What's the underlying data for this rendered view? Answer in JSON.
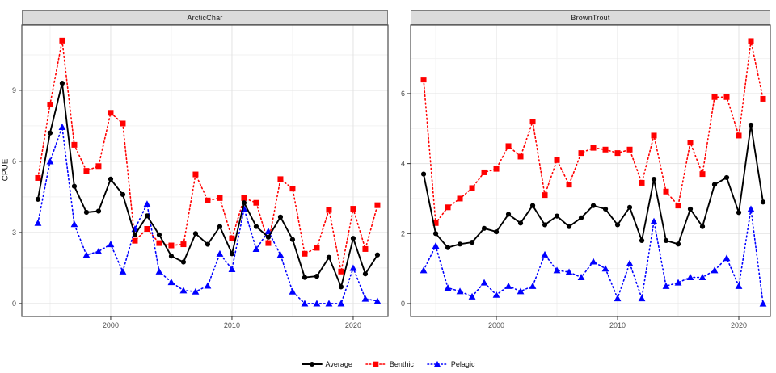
{
  "figure": {
    "y_axis_label": "CPUE",
    "background": "#FFFFFF"
  },
  "colors": {
    "average": "#000000",
    "benthic": "#FF0000",
    "pelagic": "#0000FF",
    "strip_bg": "#DBDBDB",
    "grid_major": "#E3E3E3",
    "grid_minor": "#F2F2F2",
    "axis_text": "#4D4D4D",
    "panel_border": "#4D4D4D"
  },
  "legend": {
    "items": [
      {
        "label": "Average",
        "marker": "circle",
        "line": "solid",
        "color": "#000000"
      },
      {
        "label": "Benthic",
        "marker": "square",
        "line": "dotted",
        "color": "#FF0000"
      },
      {
        "label": "Pelagic",
        "marker": "triangle",
        "line": "dotted",
        "color": "#0000FF"
      }
    ]
  },
  "chart_data": [
    {
      "type": "line",
      "title": "ArcticChar",
      "xlabel": "",
      "ylabel": "CPUE",
      "x": [
        1994,
        1995,
        1996,
        1997,
        1998,
        1999,
        2000,
        2001,
        2002,
        2003,
        2004,
        2005,
        2006,
        2007,
        2008,
        2009,
        2010,
        2011,
        2012,
        2013,
        2014,
        2015,
        2016,
        2017,
        2018,
        2019,
        2020,
        2021,
        2022
      ],
      "series": [
        {
          "name": "Average",
          "color": "#000000",
          "marker": "circle",
          "line": "solid",
          "values": [
            4.4,
            7.2,
            9.3,
            4.95,
            3.85,
            3.9,
            5.25,
            4.6,
            2.9,
            3.7,
            2.9,
            2.0,
            1.75,
            2.95,
            2.5,
            3.25,
            2.1,
            4.25,
            3.25,
            2.8,
            3.65,
            2.7,
            1.1,
            1.15,
            1.95,
            0.7,
            2.75,
            1.25,
            2.05
          ]
        },
        {
          "name": "Benthic",
          "color": "#FF0000",
          "marker": "square",
          "line": "dotted",
          "values": [
            5.3,
            8.4,
            11.1,
            6.7,
            5.6,
            5.8,
            8.05,
            7.6,
            2.65,
            3.15,
            2.55,
            2.45,
            2.5,
            5.45,
            4.35,
            4.45,
            2.75,
            4.45,
            4.25,
            2.55,
            5.25,
            4.85,
            2.1,
            2.35,
            3.95,
            1.35,
            4.0,
            2.3,
            4.15
          ]
        },
        {
          "name": "Pelagic",
          "color": "#0000FF",
          "marker": "triangle",
          "line": "dotted",
          "values": [
            3.4,
            6.0,
            7.45,
            3.35,
            2.05,
            2.2,
            2.5,
            1.35,
            3.15,
            4.2,
            1.35,
            0.9,
            0.55,
            0.5,
            0.75,
            2.1,
            1.45,
            4.0,
            2.3,
            3.05,
            2.05,
            0.5,
            0.0,
            0.0,
            0.0,
            0.0,
            1.5,
            0.2,
            0.1
          ]
        }
      ],
      "xlim": [
        1992.67,
        2022.87
      ],
      "ylim": [
        -0.55,
        11.76
      ],
      "xticks": [
        2000,
        2010,
        2020
      ],
      "xticks_minor": [
        1995,
        2005,
        2015
      ],
      "yticks": [
        0,
        3,
        6,
        9
      ],
      "yticks_minor": [
        1.5,
        4.5,
        7.5,
        10.5
      ],
      "grid": true,
      "legend_position": "bottom"
    },
    {
      "type": "line",
      "title": "BrownTrout",
      "xlabel": "",
      "ylabel": "CPUE",
      "x": [
        1994,
        1995,
        1996,
        1997,
        1998,
        1999,
        2000,
        2001,
        2002,
        2003,
        2004,
        2005,
        2006,
        2007,
        2008,
        2009,
        2010,
        2011,
        2012,
        2013,
        2014,
        2015,
        2016,
        2017,
        2018,
        2019,
        2020,
        2021,
        2022
      ],
      "series": [
        {
          "name": "Average",
          "color": "#000000",
          "marker": "circle",
          "line": "solid",
          "values": [
            3.7,
            2.0,
            1.6,
            1.7,
            1.75,
            2.15,
            2.05,
            2.55,
            2.3,
            2.8,
            2.25,
            2.5,
            2.2,
            2.45,
            2.8,
            2.7,
            2.25,
            2.75,
            1.8,
            3.55,
            1.8,
            1.7,
            2.7,
            2.2,
            3.4,
            3.6,
            2.6,
            5.1,
            2.9
          ]
        },
        {
          "name": "Benthic",
          "color": "#FF0000",
          "marker": "square",
          "line": "dotted",
          "values": [
            6.4,
            2.3,
            2.75,
            3.0,
            3.3,
            3.75,
            3.85,
            4.5,
            4.2,
            5.2,
            3.1,
            4.1,
            3.4,
            4.3,
            4.45,
            4.4,
            4.3,
            4.4,
            3.45,
            4.8,
            3.2,
            2.8,
            4.6,
            3.7,
            5.9,
            5.9,
            4.8,
            7.5,
            5.85
          ]
        },
        {
          "name": "Pelagic",
          "color": "#0000FF",
          "marker": "triangle",
          "line": "dotted",
          "values": [
            0.95,
            1.65,
            0.45,
            0.35,
            0.2,
            0.6,
            0.25,
            0.5,
            0.35,
            0.5,
            1.4,
            0.95,
            0.9,
            0.75,
            1.2,
            1.0,
            0.15,
            1.15,
            0.15,
            2.35,
            0.5,
            0.6,
            0.75,
            0.75,
            0.95,
            1.3,
            0.5,
            2.7,
            0.0
          ]
        }
      ],
      "xlim": [
        1992.93,
        2022.6
      ],
      "ylim": [
        -0.37,
        7.96
      ],
      "xticks": [
        2000,
        2010,
        2020
      ],
      "xticks_minor": [
        1995,
        2005,
        2015
      ],
      "yticks": [
        0,
        2,
        4,
        6
      ],
      "yticks_minor": [
        1,
        3,
        5,
        7
      ],
      "grid": true,
      "legend_position": "bottom"
    }
  ]
}
